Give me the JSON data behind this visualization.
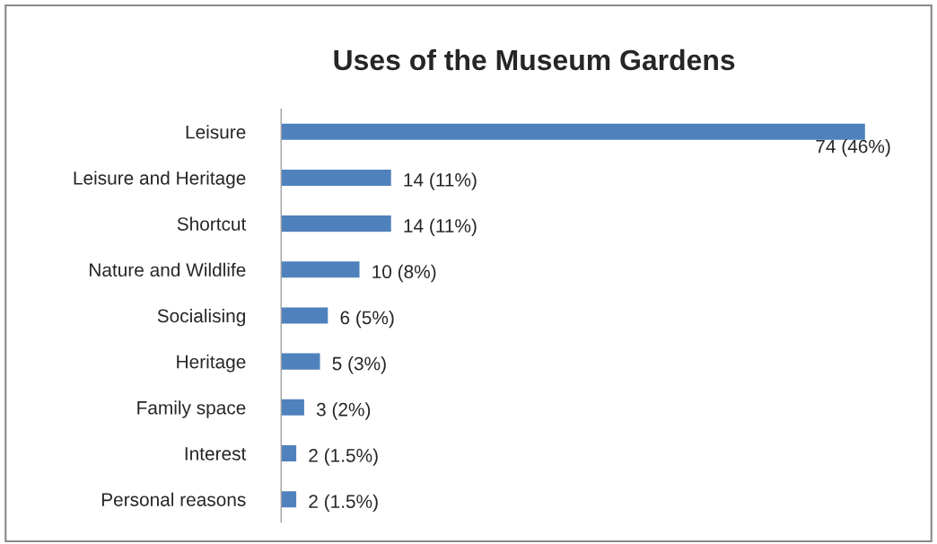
{
  "chart_data": {
    "type": "bar",
    "title": "Uses of the Museum Gardens",
    "orientation": "horizontal",
    "categories": [
      "Leisure",
      "Leisure and Heritage",
      "Shortcut",
      "Nature and Wildlife",
      "Socialising",
      "Heritage",
      "Family space",
      "Interest",
      "Personal reasons"
    ],
    "values": [
      74,
      14,
      14,
      10,
      6,
      5,
      3,
      2,
      2
    ],
    "value_labels": [
      "74 (46%)",
      "14 (11%)",
      "14 (11%)",
      "10 (8%)",
      "6 (5%)",
      "5 (3%)",
      "3 (2%)",
      "2 (1.5%)",
      "2 (1.5%)"
    ],
    "color": "#4f81bd",
    "grid": false,
    "legend": false
  }
}
